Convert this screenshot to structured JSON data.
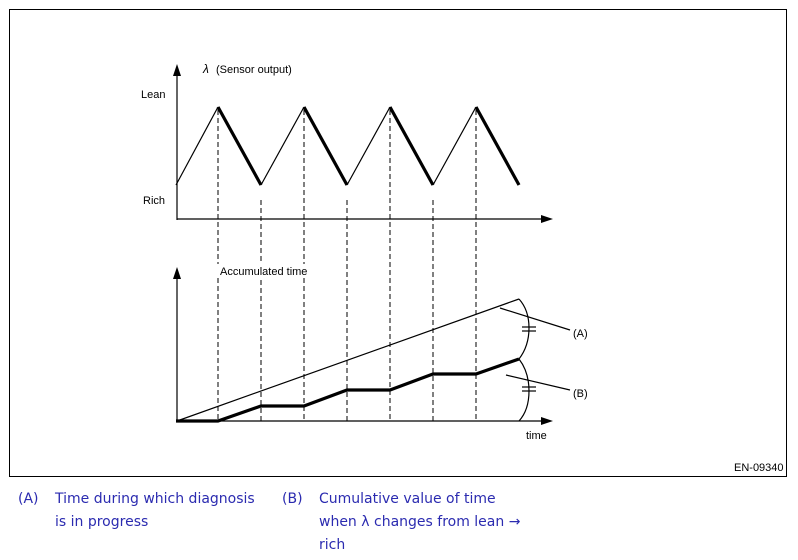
{
  "diagram": {
    "top_chart": {
      "y_axis_title_symbol": "λ",
      "y_axis_title": "(Sensor output)",
      "level_high": "Lean",
      "level_low": "Rich"
    },
    "bottom_chart": {
      "y_axis_title": "Accumulated time",
      "x_axis_label": "time",
      "callout_a": "(A)",
      "callout_b": "(B)"
    },
    "figure_id": "EN-09340"
  },
  "legend": [
    {
      "key": "(A)",
      "text_line1": "Time during which diagnosis",
      "text_line2": "is in progress",
      "text_line3": ""
    },
    {
      "key": "(B)",
      "text_line1": "Cumulative value of time",
      "text_line2": "when λ changes from lean →",
      "text_line3": "rich"
    }
  ]
}
